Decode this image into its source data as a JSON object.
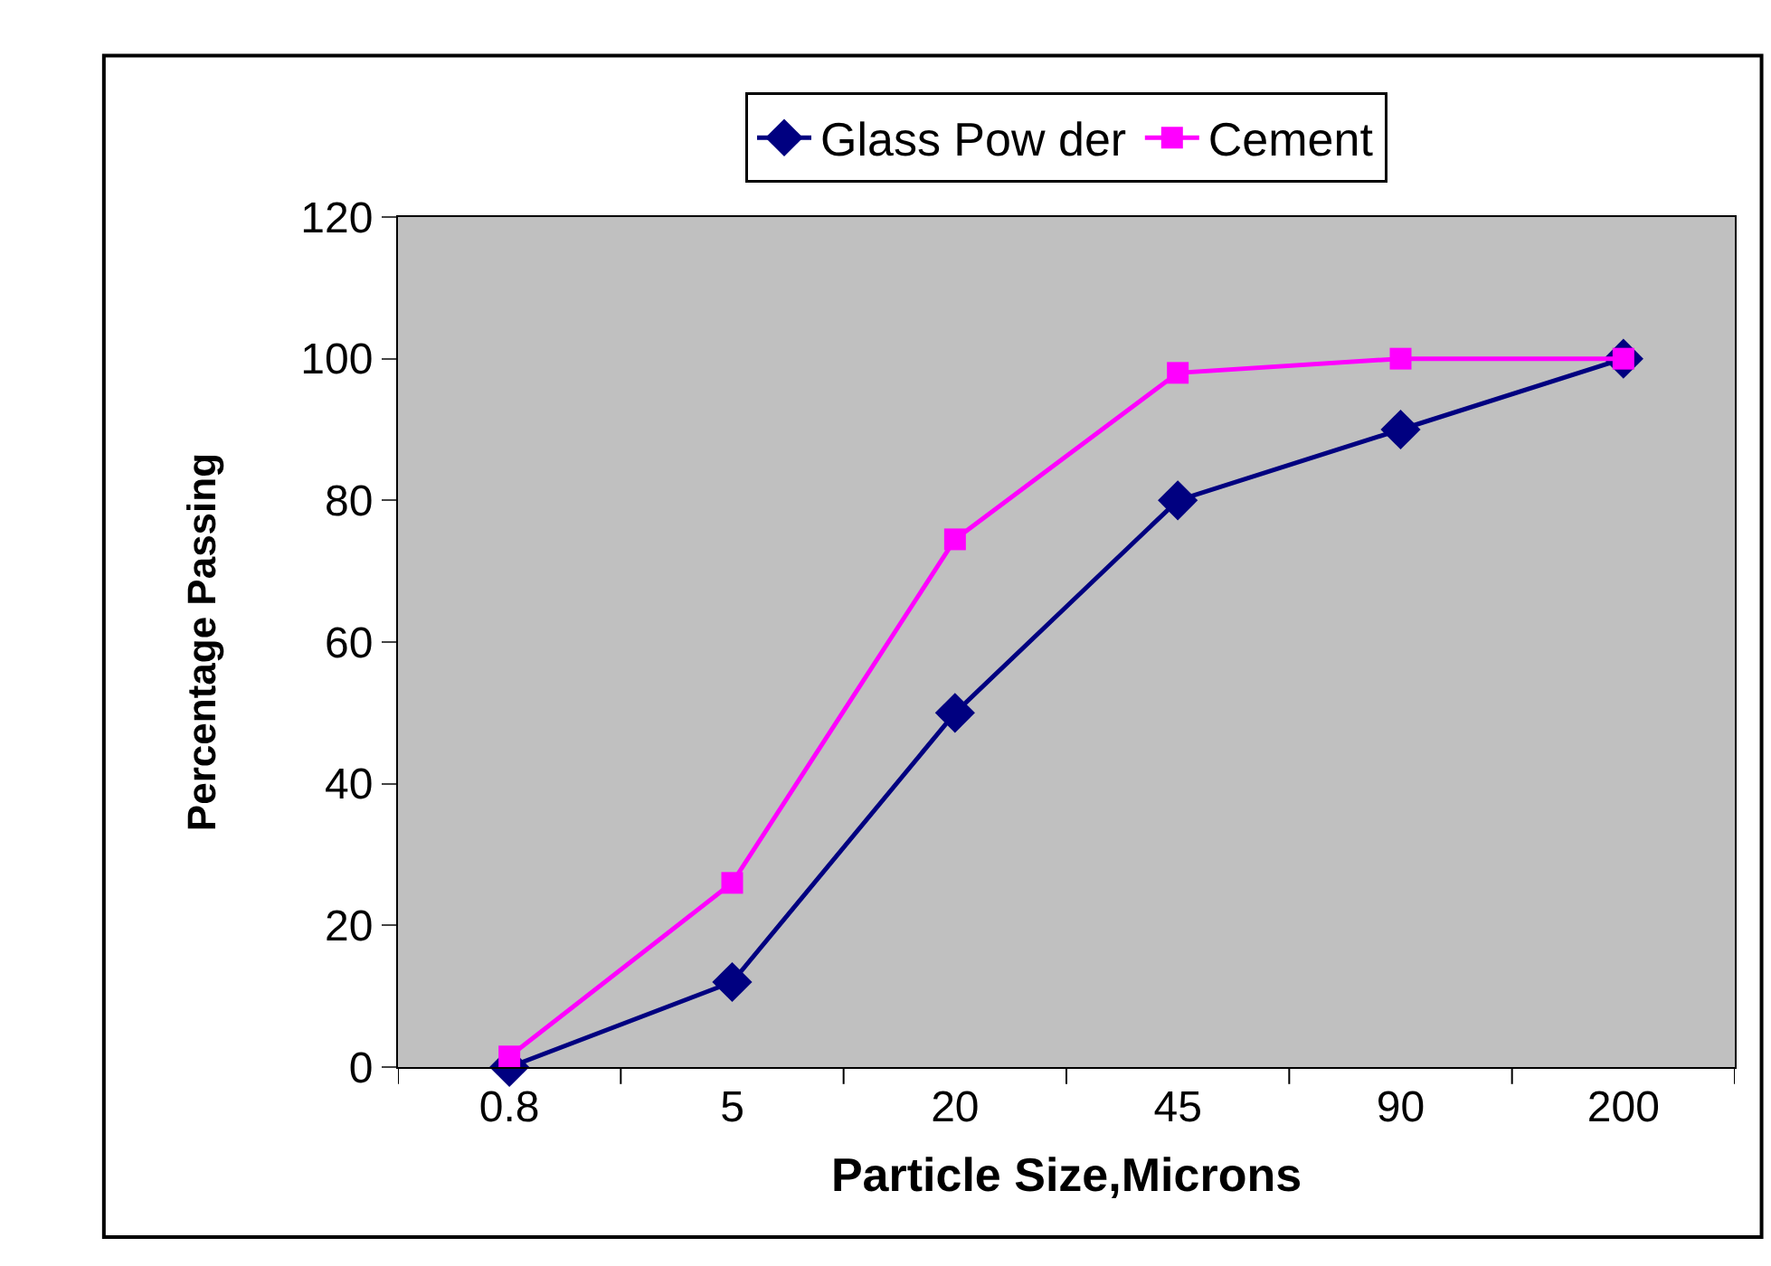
{
  "chart_data": {
    "type": "line",
    "xlabel": "Particle Size,Microns",
    "ylabel": "Percentage Passing",
    "categories": [
      "0.8",
      "5",
      "20",
      "45",
      "90",
      "200"
    ],
    "series": [
      {
        "name": "Glass Pow der",
        "color": "#000080",
        "marker": "diamond",
        "values": [
          0,
          12,
          50,
          80,
          90,
          100
        ]
      },
      {
        "name": "Cement",
        "color": "#ff00ff",
        "marker": "square",
        "values": [
          1.5,
          26,
          74.5,
          98,
          100,
          100
        ]
      }
    ],
    "ylim": [
      0,
      120
    ],
    "yticks": [
      0,
      20,
      40,
      60,
      80,
      100,
      120
    ],
    "grid": false,
    "legend": "top",
    "line_style": "solid"
  }
}
